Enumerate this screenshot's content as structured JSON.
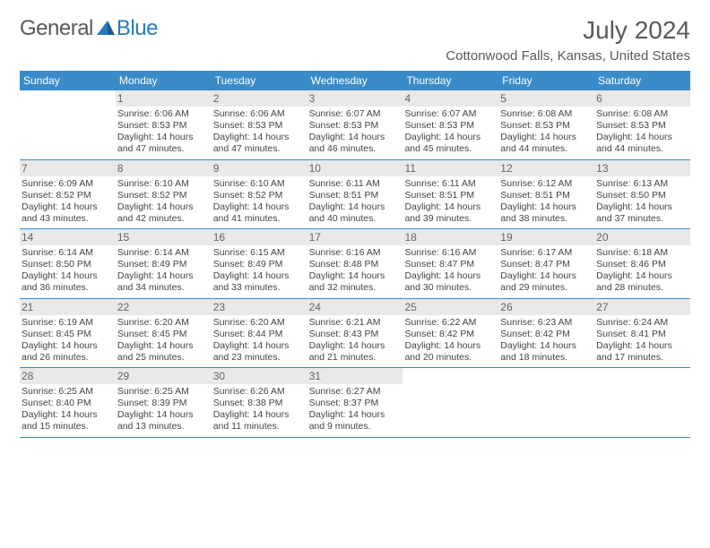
{
  "logo": {
    "text_a": "General",
    "text_b": "Blue"
  },
  "title": "July 2024",
  "location": "Cottonwood Falls, Kansas, United States",
  "colors": {
    "header_bg": "#3b8bc9",
    "header_text": "#ffffff",
    "daynum_bg": "#e9e9e9",
    "daynum_text": "#666666",
    "body_text": "#444444",
    "week_divider": "#3b8bc9",
    "page_bg": "#ffffff",
    "logo_gray": "#5a5a5a",
    "logo_blue": "#2a7ab9"
  },
  "typography": {
    "title_fontsize": 28,
    "location_fontsize": 15,
    "dow_fontsize": 12,
    "daynum_fontsize": 12,
    "body_fontsize": 10.5
  },
  "days_of_week": [
    "Sunday",
    "Monday",
    "Tuesday",
    "Wednesday",
    "Thursday",
    "Friday",
    "Saturday"
  ],
  "weeks": [
    [
      {
        "n": "",
        "sunrise": "",
        "sunset": "",
        "daylight": ""
      },
      {
        "n": "1",
        "sunrise": "Sunrise: 6:06 AM",
        "sunset": "Sunset: 8:53 PM",
        "daylight": "Daylight: 14 hours and 47 minutes."
      },
      {
        "n": "2",
        "sunrise": "Sunrise: 6:06 AM",
        "sunset": "Sunset: 8:53 PM",
        "daylight": "Daylight: 14 hours and 47 minutes."
      },
      {
        "n": "3",
        "sunrise": "Sunrise: 6:07 AM",
        "sunset": "Sunset: 8:53 PM",
        "daylight": "Daylight: 14 hours and 46 minutes."
      },
      {
        "n": "4",
        "sunrise": "Sunrise: 6:07 AM",
        "sunset": "Sunset: 8:53 PM",
        "daylight": "Daylight: 14 hours and 45 minutes."
      },
      {
        "n": "5",
        "sunrise": "Sunrise: 6:08 AM",
        "sunset": "Sunset: 8:53 PM",
        "daylight": "Daylight: 14 hours and 44 minutes."
      },
      {
        "n": "6",
        "sunrise": "Sunrise: 6:08 AM",
        "sunset": "Sunset: 8:53 PM",
        "daylight": "Daylight: 14 hours and 44 minutes."
      }
    ],
    [
      {
        "n": "7",
        "sunrise": "Sunrise: 6:09 AM",
        "sunset": "Sunset: 8:52 PM",
        "daylight": "Daylight: 14 hours and 43 minutes."
      },
      {
        "n": "8",
        "sunrise": "Sunrise: 6:10 AM",
        "sunset": "Sunset: 8:52 PM",
        "daylight": "Daylight: 14 hours and 42 minutes."
      },
      {
        "n": "9",
        "sunrise": "Sunrise: 6:10 AM",
        "sunset": "Sunset: 8:52 PM",
        "daylight": "Daylight: 14 hours and 41 minutes."
      },
      {
        "n": "10",
        "sunrise": "Sunrise: 6:11 AM",
        "sunset": "Sunset: 8:51 PM",
        "daylight": "Daylight: 14 hours and 40 minutes."
      },
      {
        "n": "11",
        "sunrise": "Sunrise: 6:11 AM",
        "sunset": "Sunset: 8:51 PM",
        "daylight": "Daylight: 14 hours and 39 minutes."
      },
      {
        "n": "12",
        "sunrise": "Sunrise: 6:12 AM",
        "sunset": "Sunset: 8:51 PM",
        "daylight": "Daylight: 14 hours and 38 minutes."
      },
      {
        "n": "13",
        "sunrise": "Sunrise: 6:13 AM",
        "sunset": "Sunset: 8:50 PM",
        "daylight": "Daylight: 14 hours and 37 minutes."
      }
    ],
    [
      {
        "n": "14",
        "sunrise": "Sunrise: 6:14 AM",
        "sunset": "Sunset: 8:50 PM",
        "daylight": "Daylight: 14 hours and 36 minutes."
      },
      {
        "n": "15",
        "sunrise": "Sunrise: 6:14 AM",
        "sunset": "Sunset: 8:49 PM",
        "daylight": "Daylight: 14 hours and 34 minutes."
      },
      {
        "n": "16",
        "sunrise": "Sunrise: 6:15 AM",
        "sunset": "Sunset: 8:49 PM",
        "daylight": "Daylight: 14 hours and 33 minutes."
      },
      {
        "n": "17",
        "sunrise": "Sunrise: 6:16 AM",
        "sunset": "Sunset: 8:48 PM",
        "daylight": "Daylight: 14 hours and 32 minutes."
      },
      {
        "n": "18",
        "sunrise": "Sunrise: 6:16 AM",
        "sunset": "Sunset: 8:47 PM",
        "daylight": "Daylight: 14 hours and 30 minutes."
      },
      {
        "n": "19",
        "sunrise": "Sunrise: 6:17 AM",
        "sunset": "Sunset: 8:47 PM",
        "daylight": "Daylight: 14 hours and 29 minutes."
      },
      {
        "n": "20",
        "sunrise": "Sunrise: 6:18 AM",
        "sunset": "Sunset: 8:46 PM",
        "daylight": "Daylight: 14 hours and 28 minutes."
      }
    ],
    [
      {
        "n": "21",
        "sunrise": "Sunrise: 6:19 AM",
        "sunset": "Sunset: 8:45 PM",
        "daylight": "Daylight: 14 hours and 26 minutes."
      },
      {
        "n": "22",
        "sunrise": "Sunrise: 6:20 AM",
        "sunset": "Sunset: 8:45 PM",
        "daylight": "Daylight: 14 hours and 25 minutes."
      },
      {
        "n": "23",
        "sunrise": "Sunrise: 6:20 AM",
        "sunset": "Sunset: 8:44 PM",
        "daylight": "Daylight: 14 hours and 23 minutes."
      },
      {
        "n": "24",
        "sunrise": "Sunrise: 6:21 AM",
        "sunset": "Sunset: 8:43 PM",
        "daylight": "Daylight: 14 hours and 21 minutes."
      },
      {
        "n": "25",
        "sunrise": "Sunrise: 6:22 AM",
        "sunset": "Sunset: 8:42 PM",
        "daylight": "Daylight: 14 hours and 20 minutes."
      },
      {
        "n": "26",
        "sunrise": "Sunrise: 6:23 AM",
        "sunset": "Sunset: 8:42 PM",
        "daylight": "Daylight: 14 hours and 18 minutes."
      },
      {
        "n": "27",
        "sunrise": "Sunrise: 6:24 AM",
        "sunset": "Sunset: 8:41 PM",
        "daylight": "Daylight: 14 hours and 17 minutes."
      }
    ],
    [
      {
        "n": "28",
        "sunrise": "Sunrise: 6:25 AM",
        "sunset": "Sunset: 8:40 PM",
        "daylight": "Daylight: 14 hours and 15 minutes."
      },
      {
        "n": "29",
        "sunrise": "Sunrise: 6:25 AM",
        "sunset": "Sunset: 8:39 PM",
        "daylight": "Daylight: 14 hours and 13 minutes."
      },
      {
        "n": "30",
        "sunrise": "Sunrise: 6:26 AM",
        "sunset": "Sunset: 8:38 PM",
        "daylight": "Daylight: 14 hours and 11 minutes."
      },
      {
        "n": "31",
        "sunrise": "Sunrise: 6:27 AM",
        "sunset": "Sunset: 8:37 PM",
        "daylight": "Daylight: 14 hours and 9 minutes."
      },
      {
        "n": "",
        "sunrise": "",
        "sunset": "",
        "daylight": ""
      },
      {
        "n": "",
        "sunrise": "",
        "sunset": "",
        "daylight": ""
      },
      {
        "n": "",
        "sunrise": "",
        "sunset": "",
        "daylight": ""
      }
    ]
  ]
}
